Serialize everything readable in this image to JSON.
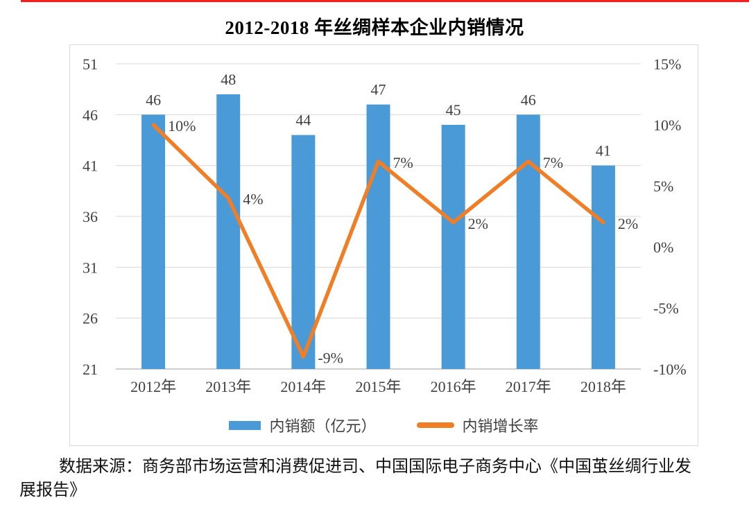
{
  "decorations": {
    "top_rule_color": "#ff1a1a"
  },
  "chart_data": {
    "type": "bar+line",
    "title": "2012-2018 年丝绸样本企业内销情况",
    "categories": [
      "2012年",
      "2013年",
      "2014年",
      "2015年",
      "2016年",
      "2017年",
      "2018年"
    ],
    "series": [
      {
        "name": "内销额（亿元）",
        "type": "bar",
        "axis": "left",
        "color": "#4a9ad8",
        "values": [
          46,
          48,
          44,
          47,
          45,
          46,
          41
        ],
        "labels": [
          "46",
          "48",
          "44",
          "47",
          "45",
          "46",
          "41"
        ]
      },
      {
        "name": "内销增长率",
        "type": "line",
        "axis": "right",
        "color": "#f07e26",
        "values": [
          10,
          4,
          -9,
          7,
          2,
          7,
          2
        ],
        "labels": [
          "10%",
          "4%",
          "-9%",
          "7%",
          "2%",
          "7%",
          "2%"
        ]
      }
    ],
    "left_axis": {
      "min": 21,
      "max": 51,
      "step": 5,
      "ticks": [
        "51",
        "46",
        "41",
        "36",
        "31",
        "26",
        "21"
      ],
      "tick_values": [
        51,
        46,
        41,
        36,
        31,
        26,
        21
      ]
    },
    "right_axis": {
      "min": -10,
      "max": 15,
      "step": 5,
      "ticks": [
        "15%",
        "10%",
        "5%",
        "0%",
        "-5%",
        "-10%"
      ],
      "tick_values": [
        15,
        10,
        5,
        0,
        -5,
        -10
      ]
    },
    "grid": true,
    "legend_position": "bottom",
    "colors": {
      "grid": "#d9d9d9",
      "axis_line": "#bfbfbf",
      "tick_text": "#404040",
      "data_label_text": "#404040"
    }
  },
  "legend": {
    "items": [
      {
        "label": "内销额（亿元）",
        "color": "#4a9ad8",
        "shape": "rect"
      },
      {
        "label": "内销增长率",
        "color": "#f07e26",
        "shape": "line"
      }
    ]
  },
  "source": {
    "text": "数据来源：商务部市场运营和消费促进司、中国国际电子商务中心《中国茧丝绸行业发展报告》"
  }
}
